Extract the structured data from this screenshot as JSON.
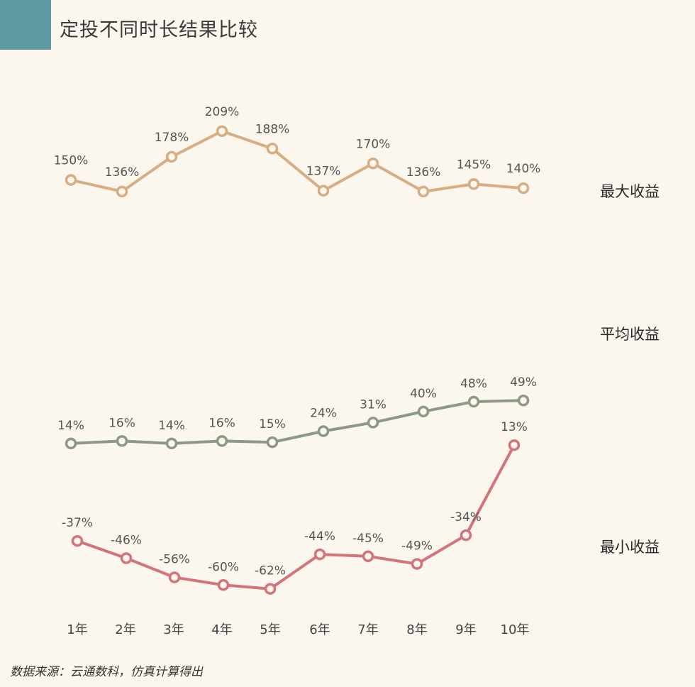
{
  "title": "定投不同时长结果比较",
  "source": "数据来源：云通数科，仿真计算得出",
  "chart_data": {
    "type": "line",
    "categories": [
      "1年",
      "2年",
      "3年",
      "4年",
      "5年",
      "6年",
      "7年",
      "8年",
      "9年",
      "10年"
    ],
    "series": [
      {
        "name": "最大收益",
        "color": "#d9ad82",
        "values": [
          150,
          136,
          178,
          209,
          188,
          137,
          170,
          136,
          145,
          140
        ],
        "labels": [
          "150%",
          "136%",
          "178%",
          "209%",
          "188%",
          "137%",
          "170%",
          "136%",
          "145%",
          "140%"
        ]
      },
      {
        "name": "平均收益",
        "color": "#8d9985",
        "values": [
          14,
          16,
          14,
          16,
          15,
          24,
          31,
          40,
          48,
          49
        ],
        "labels": [
          "14%",
          "16%",
          "14%",
          "16%",
          "15%",
          "24%",
          "31%",
          "40%",
          "48%",
          "49%"
        ]
      },
      {
        "name": "最小收益",
        "color": "#d3747a",
        "values": [
          -37,
          -46,
          -56,
          -60,
          -62,
          -44,
          -45,
          -49,
          -34,
          13
        ],
        "labels": [
          "-37%",
          "-46%",
          "-56%",
          "-60%",
          "-62%",
          "-44%",
          "-45%",
          "-49%",
          "-34%",
          "13%"
        ]
      }
    ],
    "grid": false,
    "legend": "right-of-each-series"
  }
}
